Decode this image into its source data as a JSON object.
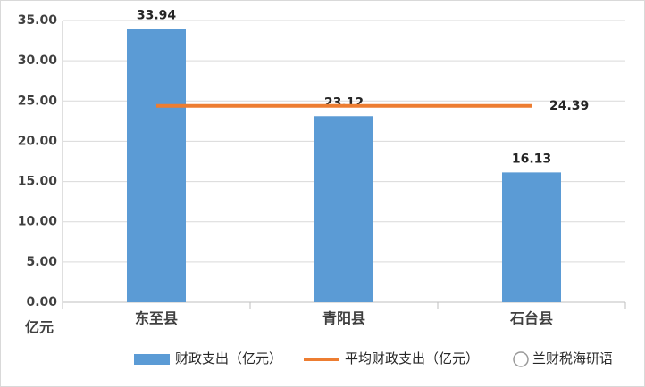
{
  "chart_data": {
    "type": "bar",
    "categories": [
      "东至县",
      "青阳县",
      "石台县"
    ],
    "series": [
      {
        "name": "财政支出（亿元）",
        "color": "#5b9bd5",
        "values": [
          33.94,
          23.12,
          16.13
        ]
      },
      {
        "name": "平均财政支出（亿元）",
        "type": "line",
        "color": "#ed7d31",
        "values": [
          24.39,
          24.39,
          24.39
        ]
      }
    ],
    "y_axis_label": "亿元",
    "ylim": [
      0,
      35
    ],
    "yticks": [
      {
        "value": 0,
        "label": "0.00"
      },
      {
        "value": 5,
        "label": "5.00"
      },
      {
        "value": 10,
        "label": "10.00"
      },
      {
        "value": 15,
        "label": "15.00"
      },
      {
        "value": 20,
        "label": "20.00"
      },
      {
        "value": 25,
        "label": "25.00"
      },
      {
        "value": 30,
        "label": "30.00"
      },
      {
        "value": 35,
        "label": "35.00"
      }
    ],
    "grid": true,
    "legend": "bottom",
    "watermark": "兰财税海研语"
  }
}
